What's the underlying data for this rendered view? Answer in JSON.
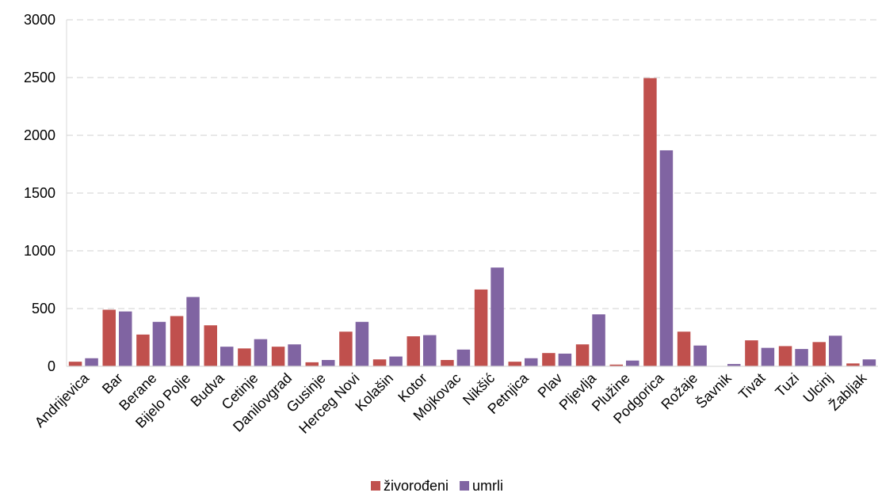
{
  "chart_data": {
    "type": "bar",
    "categories": [
      "Andrijevica",
      "Bar",
      "Berane",
      "Bijelo Polje",
      "Budva",
      "Cetinje",
      "Danilovgrad",
      "Gusinje",
      "Herceg Novi",
      "Kolašin",
      "Kotor",
      "Mojkovac",
      "Nikšić",
      "Petnjica",
      "Plav",
      "Pljevlja",
      "Plužine",
      "Podgorica",
      "Rožaje",
      "Šavnik",
      "Tivat",
      "Tuzi",
      "Ulcinj",
      "Žabljak"
    ],
    "series": [
      {
        "name": "živorođeni",
        "color": "#c0504d",
        "values": [
          40,
          490,
          275,
          435,
          355,
          155,
          170,
          35,
          300,
          60,
          260,
          55,
          665,
          40,
          115,
          190,
          15,
          2495,
          300,
          0,
          225,
          175,
          210,
          25
        ]
      },
      {
        "name": "umrli",
        "color": "#8064a2",
        "values": [
          70,
          475,
          385,
          600,
          170,
          235,
          190,
          55,
          385,
          85,
          270,
          145,
          855,
          70,
          110,
          450,
          50,
          1870,
          180,
          20,
          160,
          150,
          265,
          60
        ]
      }
    ],
    "yticks": [
      "0",
      "500",
      "1000",
      "1500",
      "2000",
      "2500",
      "3000"
    ],
    "ylim": [
      0,
      3000
    ],
    "grid": true,
    "legend_position": "bottom"
  }
}
